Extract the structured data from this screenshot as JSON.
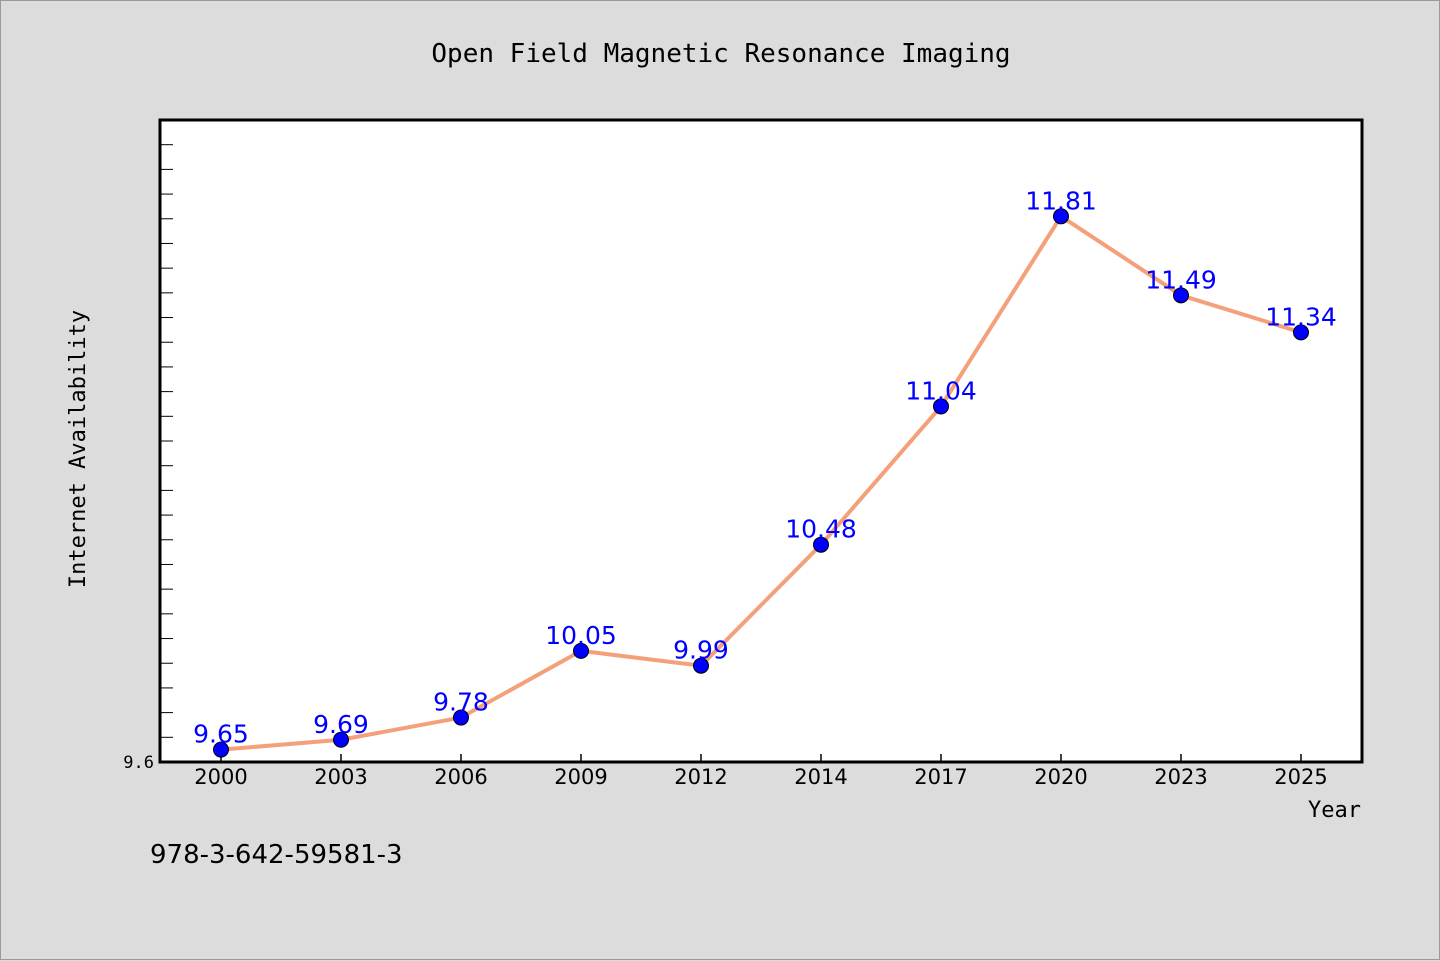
{
  "chart_data": {
    "type": "line",
    "title": "Open Field Magnetic Resonance Imaging",
    "xlabel": "Year",
    "ylabel": "Internet Availability",
    "categories": [
      "2000",
      "2003",
      "2006",
      "2009",
      "2012",
      "2014",
      "2017",
      "2020",
      "2023",
      "2025"
    ],
    "series": [
      {
        "values": [
          9.65,
          9.69,
          9.78,
          10.05,
          9.99,
          10.48,
          11.04,
          11.81,
          11.49,
          11.34
        ],
        "color": "#f4a07a",
        "marker_color": "#0000ff"
      }
    ],
    "data_labels": [
      "9.65",
      "9.69",
      "9.78",
      "10.05",
      "9.99",
      "10.48",
      "11.04",
      "11.81",
      "11.49",
      "11.34"
    ],
    "ylim": [
      9.6,
      12.2
    ],
    "yticks_labeled": [
      "9.6"
    ],
    "grid": false,
    "legend": "none"
  },
  "footer": {
    "isbn": "978-3-642-59581-3"
  }
}
